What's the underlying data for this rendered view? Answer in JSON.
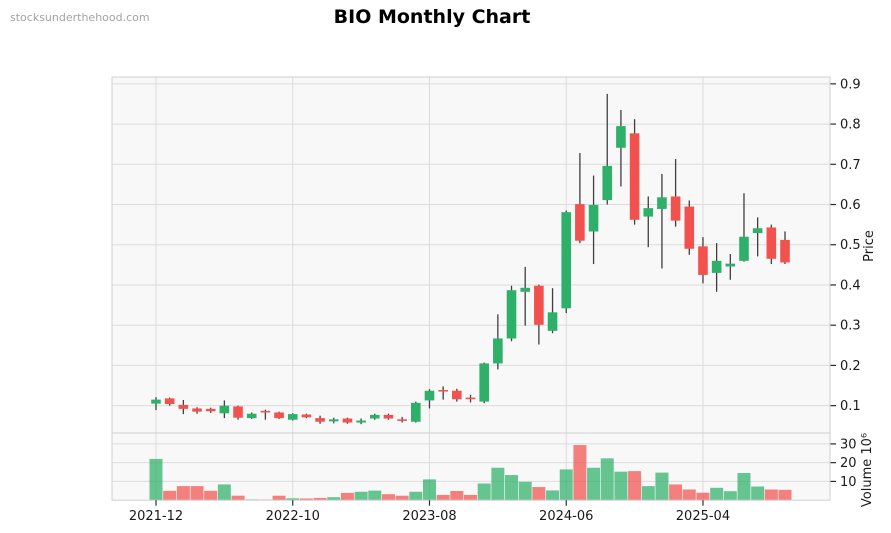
{
  "page": {
    "watermark": "stocksunderthehood.com",
    "title": "BIO Monthly Chart"
  },
  "chart_data": {
    "type": "candlestick",
    "title": "BIO Monthly Chart",
    "subtitle": "",
    "legend": [],
    "grid": true,
    "panels": [
      "price",
      "volume"
    ],
    "x": [
      "2021-12",
      "2022-01",
      "2022-02",
      "2022-03",
      "2022-04",
      "2022-05",
      "2022-06",
      "2022-07",
      "2022-08",
      "2022-09",
      "2022-10",
      "2022-11",
      "2022-12",
      "2023-01",
      "2023-02",
      "2023-03",
      "2023-04",
      "2023-05",
      "2023-06",
      "2023-07",
      "2023-08",
      "2023-09",
      "2023-10",
      "2023-11",
      "2023-12",
      "2024-01",
      "2024-02",
      "2024-03",
      "2024-04",
      "2024-05",
      "2024-06",
      "2024-07",
      "2024-08",
      "2024-09",
      "2024-10",
      "2024-11",
      "2024-12",
      "2025-01",
      "2025-02",
      "2025-03",
      "2025-04",
      "2025-05",
      "2025-06",
      "2025-07",
      "2025-08",
      "2025-09",
      "2025-10"
    ],
    "open": [
      0.105,
      0.118,
      0.102,
      0.093,
      0.092,
      0.081,
      0.098,
      0.069,
      0.087,
      0.083,
      0.065,
      0.078,
      0.069,
      0.061,
      0.068,
      0.058,
      0.068,
      0.077,
      0.066,
      0.06,
      0.113,
      0.139,
      0.137,
      0.12,
      0.11,
      0.205,
      0.267,
      0.383,
      0.398,
      0.286,
      0.342,
      0.601,
      0.533,
      0.611,
      0.741,
      0.777,
      0.57,
      0.589,
      0.62,
      0.595,
      0.496,
      0.43,
      0.446,
      0.46,
      0.529,
      0.543,
      0.512
    ],
    "high": [
      0.121,
      0.12,
      0.114,
      0.096,
      0.095,
      0.113,
      0.1,
      0.083,
      0.09,
      0.085,
      0.081,
      0.08,
      0.075,
      0.07,
      0.07,
      0.068,
      0.08,
      0.08,
      0.072,
      0.11,
      0.141,
      0.148,
      0.142,
      0.127,
      0.207,
      0.327,
      0.398,
      0.445,
      0.401,
      0.392,
      0.585,
      0.728,
      0.672,
      0.875,
      0.835,
      0.812,
      0.62,
      0.676,
      0.713,
      0.61,
      0.519,
      0.504,
      0.477,
      0.628,
      0.568,
      0.55,
      0.533
    ],
    "low": [
      0.089,
      0.1,
      0.079,
      0.08,
      0.082,
      0.069,
      0.065,
      0.067,
      0.065,
      0.067,
      0.063,
      0.069,
      0.055,
      0.056,
      0.055,
      0.054,
      0.065,
      0.065,
      0.058,
      0.058,
      0.093,
      0.115,
      0.11,
      0.108,
      0.106,
      0.19,
      0.26,
      0.299,
      0.252,
      0.28,
      0.33,
      0.504,
      0.452,
      0.6,
      0.645,
      0.55,
      0.494,
      0.441,
      0.545,
      0.475,
      0.404,
      0.383,
      0.413,
      0.458,
      0.471,
      0.452,
      0.452
    ],
    "close": [
      0.115,
      0.104,
      0.092,
      0.085,
      0.086,
      0.1,
      0.07,
      0.08,
      0.083,
      0.069,
      0.079,
      0.071,
      0.06,
      0.066,
      0.058,
      0.063,
      0.077,
      0.068,
      0.064,
      0.107,
      0.137,
      0.137,
      0.116,
      0.116,
      0.205,
      0.267,
      0.387,
      0.393,
      0.301,
      0.332,
      0.581,
      0.51,
      0.599,
      0.696,
      0.795,
      0.562,
      0.591,
      0.618,
      0.56,
      0.49,
      0.425,
      0.46,
      0.453,
      0.52,
      0.541,
      0.465,
      0.456
    ],
    "volume_millions": [
      22.0,
      5.0,
      7.5,
      7.5,
      5.0,
      8.4,
      2.4,
      0.4,
      0.3,
      2.4,
      1.0,
      0.9,
      1.2,
      1.6,
      3.9,
      4.5,
      5.1,
      3.2,
      2.4,
      4.5,
      11.1,
      2.8,
      4.9,
      2.8,
      8.9,
      17.3,
      13.4,
      9.8,
      7.0,
      5.2,
      16.4,
      29.4,
      17.3,
      22.3,
      15.2,
      15.5,
      7.5,
      14.7,
      8.4,
      5.7,
      4.0,
      6.6,
      4.8,
      14.5,
      7.3,
      5.7,
      5.5
    ],
    "axes": {
      "price_label": "Price",
      "volume_label": "Volume 10⁶",
      "price_ticks": [
        "0.9",
        "0.8",
        "0.7",
        "0.6",
        "0.5",
        "0.4",
        "0.3",
        "0.2",
        "0.1"
      ],
      "price_tick_values": [
        0.9,
        0.8,
        0.7,
        0.6,
        0.5,
        0.4,
        0.3,
        0.2,
        0.1
      ],
      "volume_ticks": [
        "30",
        "20",
        "10"
      ],
      "volume_tick_values": [
        30,
        20,
        10
      ],
      "x_ticks": [
        {
          "label": "2021-12",
          "index": 0
        },
        {
          "label": "2022-10",
          "index": 10
        },
        {
          "label": "2023-08",
          "index": 20
        },
        {
          "label": "2024-06",
          "index": 30
        },
        {
          "label": "2025-04",
          "index": 40
        }
      ],
      "price_range": [
        0.032,
        0.917
      ],
      "volume_range": [
        0,
        35.8
      ],
      "legend_position": "none"
    },
    "colors": {
      "up": "#2eb06a",
      "down": "#f2524e",
      "wick": "#3f3f3f",
      "grid": "#dcdcdc",
      "spine": "#cfcfcf",
      "panel_bg": "#f8f8f8",
      "tick_text": "#1a1a1a",
      "volume_opacity": 0.72
    }
  }
}
